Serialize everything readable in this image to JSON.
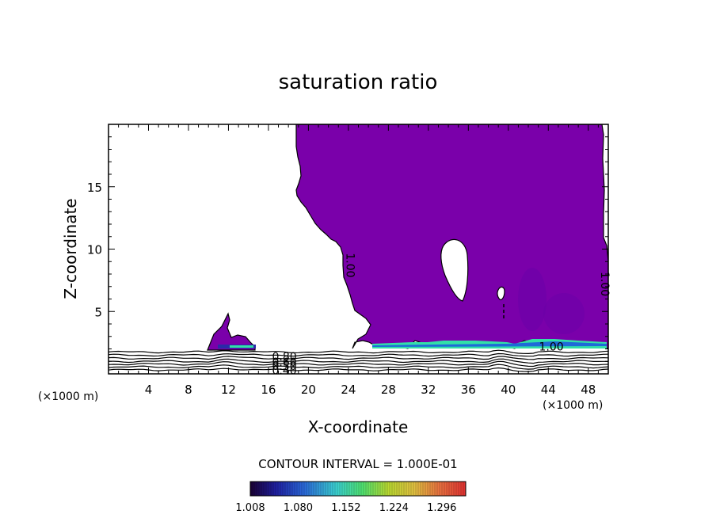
{
  "chart_data": {
    "type": "heatmap",
    "title": "saturation ratio",
    "xlabel": "X-coordinate",
    "ylabel": "Z-coordinate",
    "x_unit_label": "(×1000 m)",
    "xlim": [
      0,
      50
    ],
    "ylim": [
      0,
      20
    ],
    "x_ticks": [
      4,
      8,
      12,
      16,
      20,
      24,
      28,
      32,
      36,
      40,
      44,
      48
    ],
    "y_ticks": [
      5,
      10,
      15
    ],
    "contour_interval_text": "CONTOUR INTERVAL = 1.000E-01",
    "contour_labels": [
      {
        "text": "0.80",
        "x": 17.6,
        "z": 1.4
      },
      {
        "text": "0.60",
        "x": 17.6,
        "z": 0.95
      },
      {
        "text": "0.50",
        "x": 17.6,
        "z": 0.65
      },
      {
        "text": "0.40",
        "x": 17.6,
        "z": 0.3
      },
      {
        "text": "1.00",
        "x": 24.2,
        "z": 8.7
      },
      {
        "text": "1.00",
        "x": 49.7,
        "z": 7.2
      },
      {
        "text": "1.00",
        "x": 44.3,
        "z": 2.2
      }
    ],
    "colorbar": {
      "ticks": [
        "1.008",
        "1.080",
        "1.152",
        "1.224",
        "1.296"
      ],
      "range": [
        1.008,
        1.332
      ]
    },
    "colors": {
      "supersaturated_fill": "#7a00aa",
      "contour_line": "#000000",
      "high_band": "#32e0a8",
      "mid_band": "#1e6ad8",
      "low_band": "#2a2aa8"
    }
  }
}
